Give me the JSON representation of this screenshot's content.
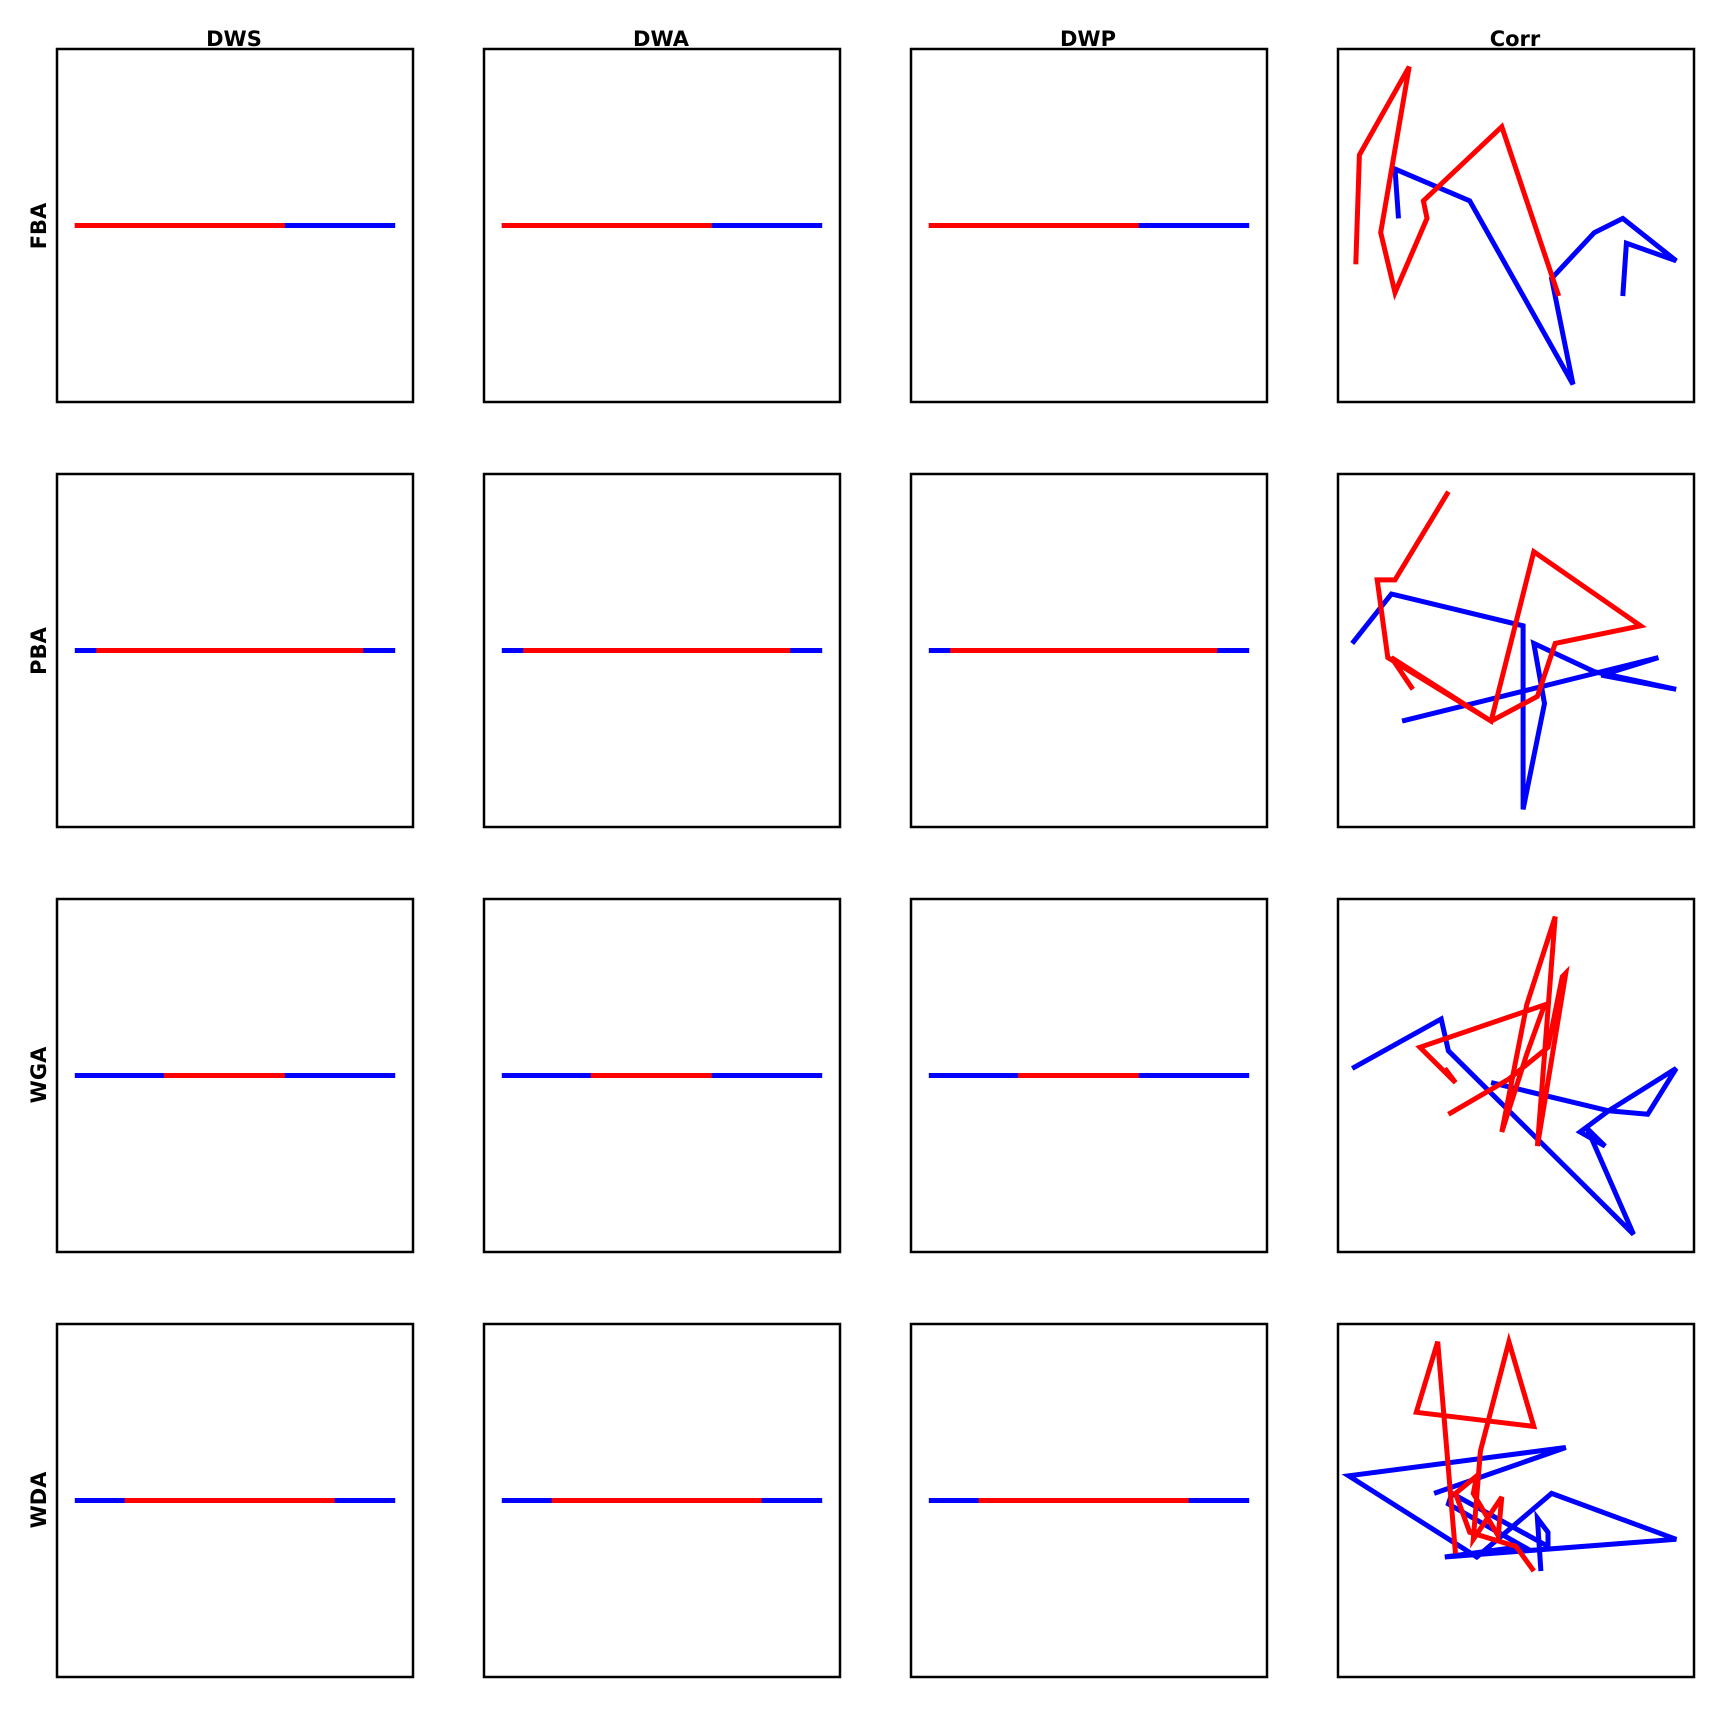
{
  "figure": {
    "col_titles": [
      "DWS",
      "DWA",
      "DWP",
      "Corr"
    ],
    "row_titles": [
      "FBA",
      "PBA",
      "WGA",
      "WDA"
    ]
  },
  "chart_data": {
    "type": "line",
    "grid": false,
    "ticks": false,
    "series_colors": [
      "#0000ff",
      "#ff0000"
    ],
    "panels": [
      {
        "row": "FBA",
        "col": "DWS",
        "xlim": [
          0,
          1
        ],
        "ylim": [
          -1,
          1
        ],
        "series": [
          {
            "color": "#0000ff",
            "x": [
              0.05,
              0.95
            ],
            "y": [
              0,
              0
            ]
          },
          {
            "color": "#ff0000",
            "x": [
              0.05,
              0.64
            ],
            "y": [
              0,
              0
            ]
          }
        ]
      },
      {
        "row": "FBA",
        "col": "DWA",
        "xlim": [
          0,
          1
        ],
        "ylim": [
          -1,
          1
        ],
        "series": [
          {
            "color": "#0000ff",
            "x": [
              0.05,
              0.95
            ],
            "y": [
              0,
              0
            ]
          },
          {
            "color": "#ff0000",
            "x": [
              0.05,
              0.64
            ],
            "y": [
              0,
              0
            ]
          }
        ]
      },
      {
        "row": "FBA",
        "col": "DWP",
        "xlim": [
          0,
          1
        ],
        "ylim": [
          -1,
          1
        ],
        "series": [
          {
            "color": "#0000ff",
            "x": [
              0.05,
              0.95
            ],
            "y": [
              0,
              0
            ]
          },
          {
            "color": "#ff0000",
            "x": [
              0.05,
              0.64
            ],
            "y": [
              0,
              0
            ]
          }
        ]
      },
      {
        "row": "FBA",
        "col": "Corr",
        "xlim": [
          0,
          1
        ],
        "ylim": [
          0,
          1
        ],
        "series": [
          {
            "color": "#0000ff",
            "x": [
              0.17,
              0.16,
              0.37,
              0.66,
              0.6,
              0.72,
              0.8,
              0.95,
              0.81,
              0.8
            ],
            "y": [
              0.52,
              0.66,
              0.57,
              0.05,
              0.35,
              0.48,
              0.52,
              0.4,
              0.45,
              0.3
            ]
          },
          {
            "color": "#ff0000",
            "x": [
              0.62,
              0.46,
              0.24,
              0.25,
              0.16,
              0.12,
              0.2,
              0.06,
              0.05
            ],
            "y": [
              0.3,
              0.78,
              0.57,
              0.52,
              0.31,
              0.48,
              0.95,
              0.7,
              0.39
            ]
          }
        ]
      },
      {
        "row": "PBA",
        "col": "DWS",
        "xlim": [
          0,
          1
        ],
        "ylim": [
          -1,
          1
        ],
        "series": [
          {
            "color": "#0000ff",
            "x": [
              0.05,
              0.95
            ],
            "y": [
              0,
              0
            ]
          },
          {
            "color": "#ff0000",
            "x": [
              0.11,
              0.86
            ],
            "y": [
              0,
              0
            ]
          }
        ]
      },
      {
        "row": "PBA",
        "col": "DWA",
        "xlim": [
          0,
          1
        ],
        "ylim": [
          -1,
          1
        ],
        "series": [
          {
            "color": "#0000ff",
            "x": [
              0.05,
              0.95
            ],
            "y": [
              0,
              0
            ]
          },
          {
            "color": "#ff0000",
            "x": [
              0.11,
              0.86
            ],
            "y": [
              0,
              0
            ]
          }
        ]
      },
      {
        "row": "PBA",
        "col": "DWP",
        "xlim": [
          0,
          1
        ],
        "ylim": [
          -1,
          1
        ],
        "series": [
          {
            "color": "#0000ff",
            "x": [
              0.05,
              0.95
            ],
            "y": [
              0,
              0
            ]
          },
          {
            "color": "#ff0000",
            "x": [
              0.11,
              0.86
            ],
            "y": [
              0,
              0
            ]
          }
        ]
      },
      {
        "row": "PBA",
        "col": "Corr",
        "xlim": [
          0,
          1
        ],
        "ylim": [
          0,
          1
        ],
        "series": [
          {
            "color": "#0000ff",
            "x": [
              0.04,
              0.15,
              0.52,
              0.52,
              0.58,
              0.55,
              0.72,
              0.95,
              0.74,
              0.9,
              0.18
            ],
            "y": [
              0.52,
              0.66,
              0.57,
              0.05,
              0.35,
              0.52,
              0.44,
              0.39,
              0.43,
              0.48,
              0.3
            ]
          },
          {
            "color": "#ff0000",
            "x": [
              0.21,
              0.15,
              0.43,
              0.56,
              0.61,
              0.85,
              0.55,
              0.43,
              0.14,
              0.11,
              0.16,
              0.31
            ],
            "y": [
              0.39,
              0.48,
              0.3,
              0.37,
              0.52,
              0.57,
              0.78,
              0.3,
              0.48,
              0.7,
              0.7,
              0.95
            ]
          }
        ]
      },
      {
        "row": "WGA",
        "col": "DWS",
        "xlim": [
          0,
          1
        ],
        "ylim": [
          -1,
          1
        ],
        "series": [
          {
            "color": "#0000ff",
            "x": [
              0.05,
              0.95
            ],
            "y": [
              0,
              0
            ]
          },
          {
            "color": "#ff0000",
            "x": [
              0.3,
              0.64
            ],
            "y": [
              0,
              0
            ]
          }
        ]
      },
      {
        "row": "WGA",
        "col": "DWA",
        "xlim": [
          0,
          1
        ],
        "ylim": [
          -1,
          1
        ],
        "series": [
          {
            "color": "#0000ff",
            "x": [
              0.05,
              0.95
            ],
            "y": [
              0,
              0
            ]
          },
          {
            "color": "#ff0000",
            "x": [
              0.3,
              0.64
            ],
            "y": [
              0,
              0
            ]
          }
        ]
      },
      {
        "row": "WGA",
        "col": "DWP",
        "xlim": [
          0,
          1
        ],
        "ylim": [
          -1,
          1
        ],
        "series": [
          {
            "color": "#0000ff",
            "x": [
              0.05,
              0.95
            ],
            "y": [
              0,
              0
            ]
          },
          {
            "color": "#ff0000",
            "x": [
              0.3,
              0.64
            ],
            "y": [
              0,
              0
            ]
          }
        ]
      },
      {
        "row": "WGA",
        "col": "Corr",
        "xlim": [
          0,
          1
        ],
        "ylim": [
          0,
          1
        ],
        "series": [
          {
            "color": "#0000ff",
            "x": [
              0.04,
              0.29,
              0.31,
              0.83,
              0.7,
              0.75,
              0.68,
              0.76,
              0.95,
              0.87,
              0.76,
              0.43
            ],
            "y": [
              0.52,
              0.66,
              0.57,
              0.05,
              0.35,
              0.3,
              0.34,
              0.4,
              0.52,
              0.39,
              0.4,
              0.48
            ]
          },
          {
            "color": "#ff0000",
            "x": [
              0.31,
              0.48,
              0.59,
              0.63,
              0.64,
              0.56,
              0.61,
              0.53,
              0.46,
              0.53,
              0.58,
              0.23,
              0.33,
              0.3
            ],
            "y": [
              0.39,
              0.49,
              0.58,
              0.78,
              0.79,
              0.3,
              0.95,
              0.7,
              0.34,
              0.56,
              0.7,
              0.58,
              0.48,
              0.52
            ]
          }
        ]
      },
      {
        "row": "WDA",
        "col": "DWS",
        "xlim": [
          0,
          1
        ],
        "ylim": [
          -1,
          1
        ],
        "series": [
          {
            "color": "#0000ff",
            "x": [
              0.05,
              0.95
            ],
            "y": [
              0,
              0
            ]
          },
          {
            "color": "#ff0000",
            "x": [
              0.19,
              0.78
            ],
            "y": [
              0,
              0
            ]
          }
        ]
      },
      {
        "row": "WDA",
        "col": "DWA",
        "xlim": [
          0,
          1
        ],
        "ylim": [
          -1,
          1
        ],
        "series": [
          {
            "color": "#0000ff",
            "x": [
              0.05,
              0.95
            ],
            "y": [
              0,
              0
            ]
          },
          {
            "color": "#ff0000",
            "x": [
              0.19,
              0.78
            ],
            "y": [
              0,
              0
            ]
          }
        ]
      },
      {
        "row": "WDA",
        "col": "DWP",
        "xlim": [
          0,
          1
        ],
        "ylim": [
          -1,
          1
        ],
        "series": [
          {
            "color": "#0000ff",
            "x": [
              0.05,
              0.95
            ],
            "y": [
              0,
              0
            ]
          },
          {
            "color": "#ff0000",
            "x": [
              0.19,
              0.78
            ],
            "y": [
              0,
              0
            ]
          }
        ]
      },
      {
        "row": "WDA",
        "col": "Corr",
        "xlim": [
          0,
          1
        ],
        "ylim": [
          0,
          1
        ],
        "series": [
          {
            "color": "#0000ff",
            "x": [
              0.57,
              0.56,
              0.59,
              0.59,
              0.32,
              0.31,
              0.52,
              0.3,
              0.95,
              0.6,
              0.39,
              0.03,
              0.64,
              0.27
            ],
            "y": [
              0.3,
              0.45,
              0.41,
              0.37,
              0.52,
              0.49,
              0.37,
              0.34,
              0.39,
              0.52,
              0.34,
              0.57,
              0.65,
              0.52
            ]
          },
          {
            "color": "#ff0000",
            "x": [
              0.55,
              0.5,
              0.37,
              0.33,
              0.39,
              0.38,
              0.45,
              0.46,
              0.38,
              0.4,
              0.48,
              0.55,
              0.22,
              0.28,
              0.33
            ],
            "y": [
              0.3,
              0.37,
              0.41,
              0.52,
              0.57,
              0.52,
              0.4,
              0.51,
              0.39,
              0.64,
              0.95,
              0.71,
              0.75,
              0.95,
              0.35
            ]
          }
        ]
      }
    ]
  }
}
